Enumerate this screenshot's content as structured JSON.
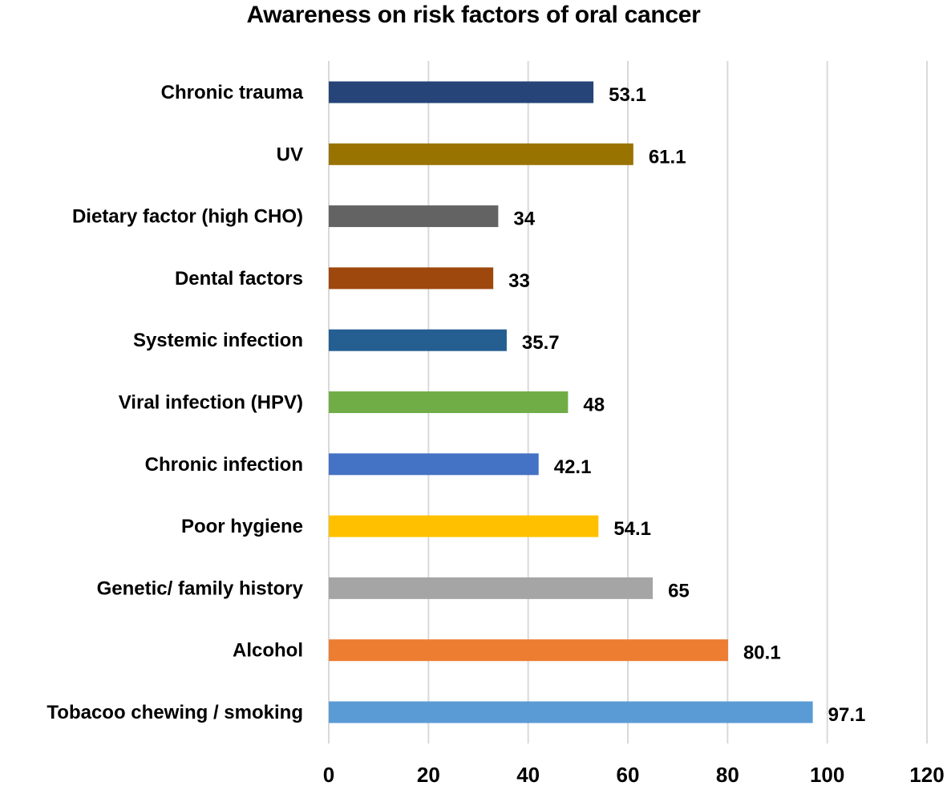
{
  "chart_data": {
    "type": "bar",
    "orientation": "horizontal",
    "title": "Awareness on risk factors of oral cancer",
    "xlabel": "",
    "ylabel": "",
    "xlim": [
      0,
      120
    ],
    "x_ticks": [
      0,
      20,
      40,
      60,
      80,
      100,
      120
    ],
    "grid": true,
    "legend": "none",
    "categories": [
      "Chronic trauma",
      "UV",
      "Dietary factor (high CHO)",
      "Dental factors",
      "Systemic infection",
      "Viral infection (HPV)",
      "Chronic infection",
      "Poor hygiene",
      "Genetic/ family history",
      "Alcohol",
      "Tobacoo chewing / smoking"
    ],
    "values": [
      53.1,
      61.1,
      34,
      33,
      35.7,
      48,
      42.1,
      54.1,
      65,
      80.1,
      97.1
    ],
    "value_labels": [
      "53.1",
      "61.1",
      "34",
      "33",
      "35.7",
      "48",
      "42.1",
      "54.1",
      "65",
      "80.1",
      "97.1"
    ],
    "colors": [
      "#264478",
      "#997300",
      "#636363",
      "#9E480E",
      "#255E91",
      "#70AD47",
      "#4472C4",
      "#FFC000",
      "#A5A5A5",
      "#ED7D31",
      "#5B9BD5"
    ],
    "gridline_color": "#d9d9d9"
  }
}
